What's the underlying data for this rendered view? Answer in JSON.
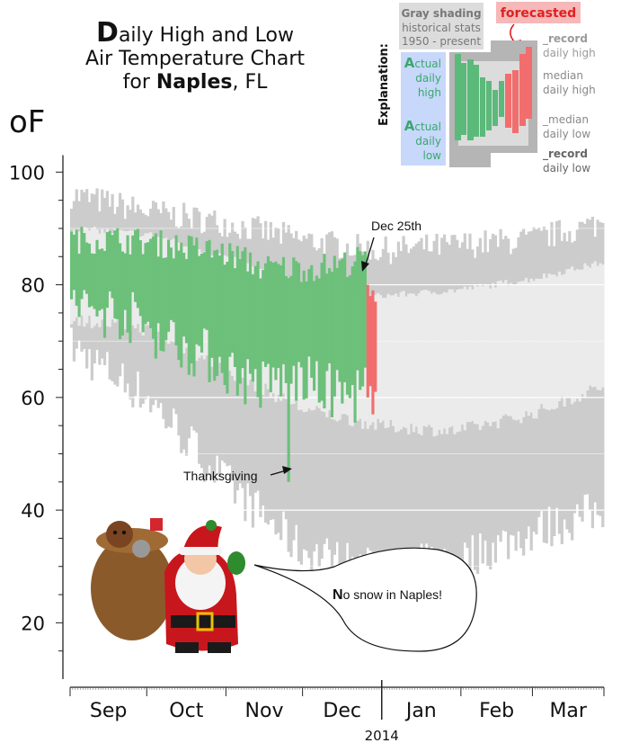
{
  "title": {
    "first_letter": "D",
    "line1_rest": "aily High and Low",
    "line2": "Air Temperature Chart",
    "line3_prefix": "for ",
    "city": "Naples",
    "line3_suffix": ", FL"
  },
  "unit_label": "oF",
  "explanation": {
    "heading": "Explanation:",
    "gray_title": "Gray shading",
    "gray_sub1": "historical stats",
    "gray_sub2": "1950 - present",
    "forecasted": "forecasted",
    "actual_high_A": "A",
    "actual_high_rest": "ctual",
    "actual_high_l2": "daily",
    "actual_high_l3": "high",
    "actual_low_A": "A",
    "actual_low_rest": "ctual",
    "actual_low_l2": "daily",
    "actual_low_l3": "low",
    "record_high_l1": "_record",
    "record_high_l2": "daily high",
    "median_high_l1": "median",
    "median_high_l2": "daily high",
    "median_low_l1": "_median",
    "median_low_l2": "daily low",
    "record_low_l1": "_record",
    "record_low_l2": "daily low"
  },
  "annotations": {
    "dec25": "Dec 25th",
    "thanksgiving": "Thanksgiving",
    "snow_N": "N",
    "snow_rest": "o snow in Naples!"
  },
  "colors": {
    "record_band": "#cccccc",
    "median_band": "#ebebeb",
    "actual": "#6cc07a",
    "forecast": "#f26d6d",
    "grid": "#ffffff"
  },
  "chart_data": {
    "type": "bar",
    "title": "Daily High and Low Air Temperature Chart for Naples, FL",
    "ylabel": "oF",
    "ylim": [
      10,
      105
    ],
    "y_ticks": [
      20,
      40,
      60,
      80,
      100
    ],
    "x_months": [
      "Sep",
      "Oct",
      "Nov",
      "Dec",
      "Jan",
      "Feb",
      "Mar"
    ],
    "year_label": "2014",
    "x_range_days": [
      0,
      208
    ],
    "record_high_keypoints": [
      [
        0,
        96
      ],
      [
        30,
        93
      ],
      [
        60,
        91
      ],
      [
        90,
        88
      ],
      [
        120,
        86
      ],
      [
        150,
        87
      ],
      [
        180,
        88
      ],
      [
        208,
        91
      ]
    ],
    "median_high_keypoints": [
      [
        0,
        90
      ],
      [
        30,
        89
      ],
      [
        60,
        85
      ],
      [
        90,
        80
      ],
      [
        120,
        78
      ],
      [
        150,
        79
      ],
      [
        180,
        81
      ],
      [
        208,
        84
      ]
    ],
    "median_low_keypoints": [
      [
        0,
        74
      ],
      [
        30,
        72
      ],
      [
        60,
        65
      ],
      [
        90,
        58
      ],
      [
        120,
        55
      ],
      [
        150,
        54
      ],
      [
        180,
        57
      ],
      [
        208,
        62
      ]
    ],
    "record_low_keypoints": [
      [
        0,
        69
      ],
      [
        30,
        60
      ],
      [
        60,
        45
      ],
      [
        90,
        33
      ],
      [
        120,
        29
      ],
      [
        150,
        31
      ],
      [
        180,
        36
      ],
      [
        208,
        40
      ]
    ],
    "actual_high_keypoints": [
      [
        0,
        88
      ],
      [
        20,
        88
      ],
      [
        40,
        87
      ],
      [
        55,
        86
      ],
      [
        65,
        85
      ],
      [
        75,
        83
      ],
      [
        85,
        83
      ],
      [
        95,
        83
      ],
      [
        110,
        84
      ],
      [
        115,
        85
      ]
    ],
    "actual_low_keypoints": [
      [
        0,
        76
      ],
      [
        20,
        75
      ],
      [
        40,
        70
      ],
      [
        55,
        67
      ],
      [
        65,
        64
      ],
      [
        75,
        62
      ],
      [
        85,
        64
      ],
      [
        95,
        62
      ],
      [
        110,
        60
      ],
      [
        115,
        62
      ]
    ],
    "actual_last_day": 115,
    "forecast_days": [
      116,
      117,
      118,
      119
    ],
    "forecast_high": [
      80,
      78,
      79,
      77
    ],
    "forecast_low": [
      60,
      62,
      57,
      61
    ],
    "annotations": [
      {
        "text": "Dec 25th",
        "day": 116,
        "value": 83
      },
      {
        "text": "Thanksgiving",
        "day": 85,
        "value": 47
      },
      {
        "text": "No snow in Naples!"
      }
    ]
  }
}
